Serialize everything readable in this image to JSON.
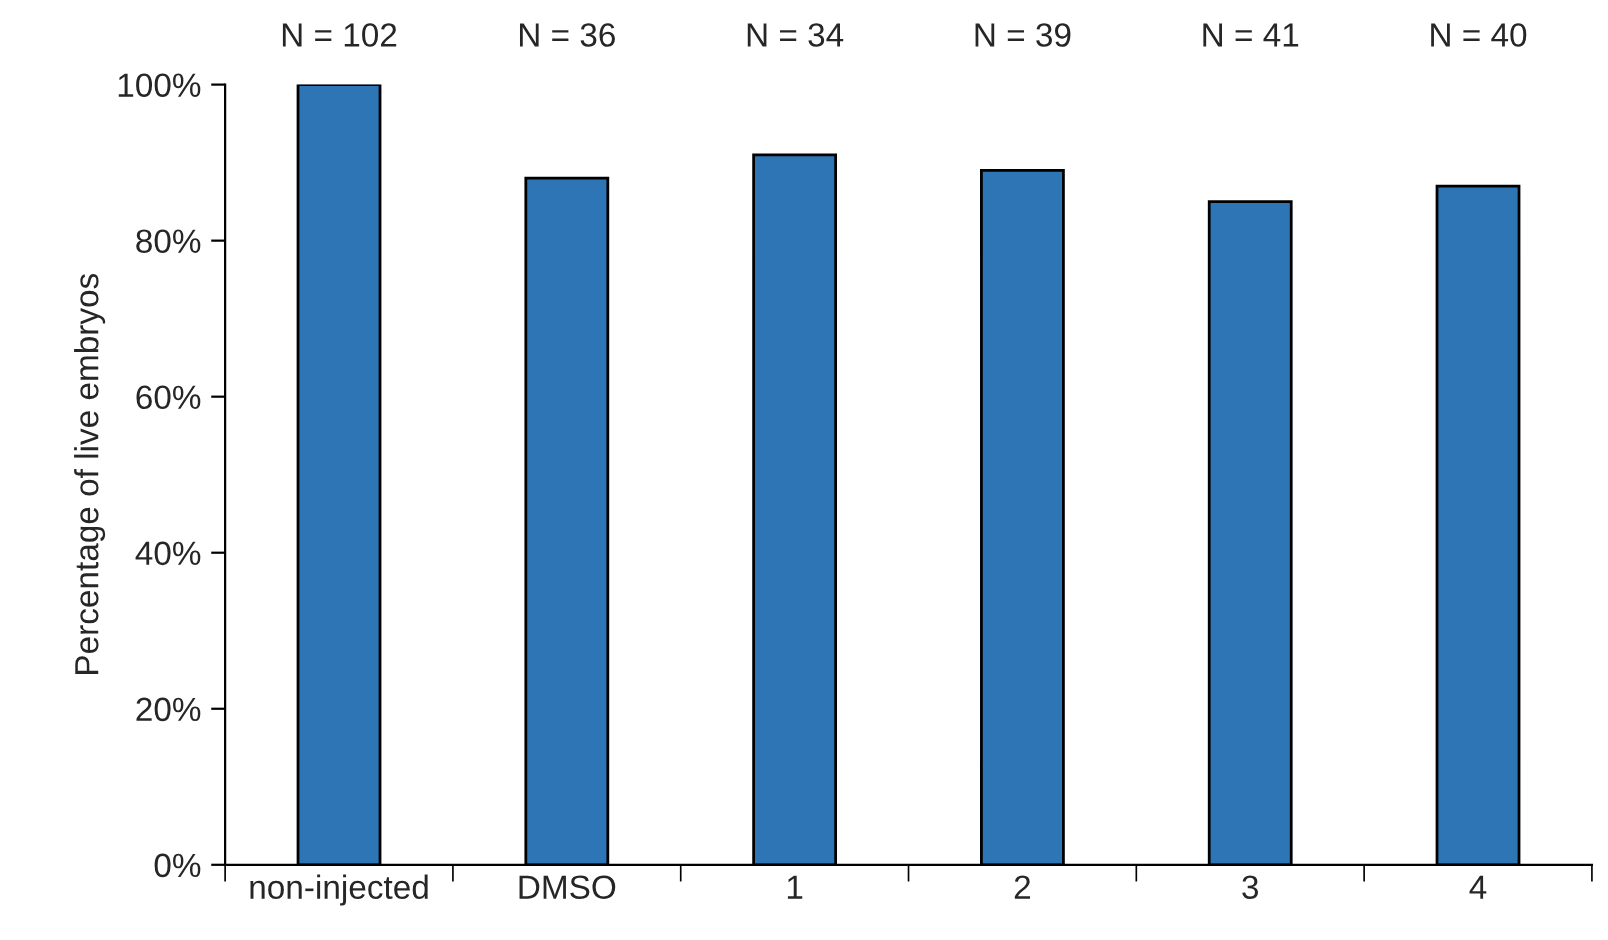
{
  "chart_data": {
    "type": "bar",
    "ylabel": "Percentage of live embryos",
    "categories": [
      "non-injected",
      "DMSO",
      "1",
      "2",
      "3",
      "4"
    ],
    "values": [
      100,
      88,
      91,
      89,
      85,
      87
    ],
    "color": "#2e75b6",
    "ylim": [
      0,
      100
    ],
    "yticks": [
      {
        "value": 0,
        "label": "0%"
      },
      {
        "value": 20,
        "label": "20%"
      },
      {
        "value": 40,
        "label": "40%"
      },
      {
        "value": 60,
        "label": "60%"
      },
      {
        "value": 80,
        "label": "80%"
      },
      {
        "value": 100,
        "label": "100%"
      }
    ],
    "grid": false,
    "legend": false,
    "annotations": [
      "N = 102",
      "N = 36",
      "N = 34",
      "N = 39",
      "N = 41",
      "N = 40"
    ]
  }
}
